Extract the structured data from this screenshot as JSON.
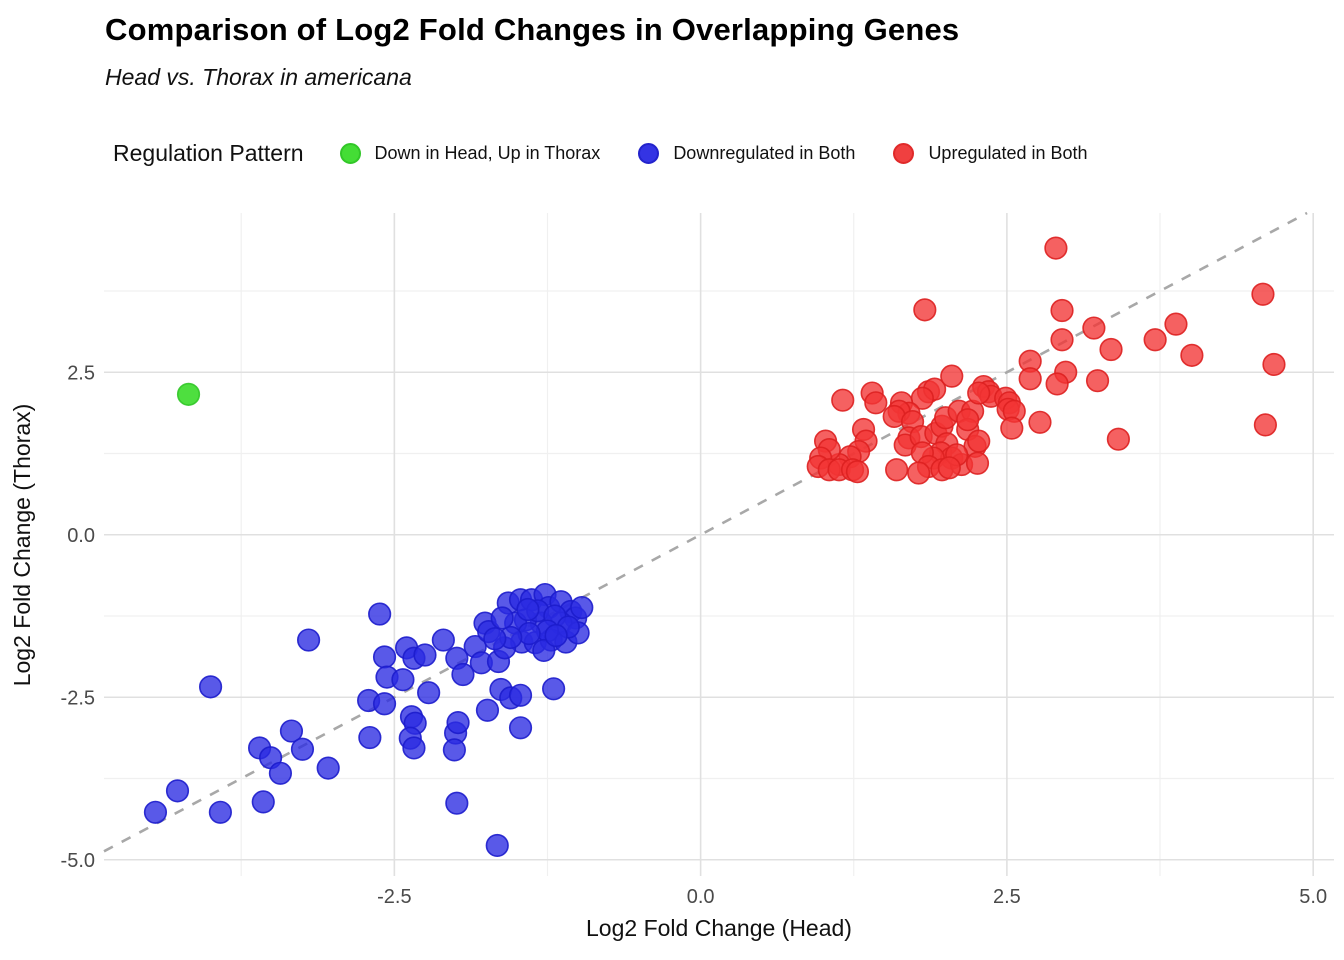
{
  "header": {
    "title": "Comparison of Log2 Fold Changes in Overlapping Genes",
    "subtitle": "Head vs. Thorax in americana"
  },
  "legend": {
    "title": "Regulation Pattern",
    "position": "top",
    "items": [
      {
        "label": "Down in Head, Up in Thorax",
        "color": "#44dd35",
        "edge_color": "#32c728"
      },
      {
        "label": "Downregulated in Both",
        "color": "#3434e4",
        "edge_color": "#2323cc"
      },
      {
        "label": "Upregulated in Both",
        "color": "#f04040",
        "edge_color": "#e02a2a"
      }
    ]
  },
  "axes": {
    "x": {
      "label": "Log2 Fold Change (Head)"
    },
    "y": {
      "label": "Log2 Fold Change (Thorax)"
    }
  },
  "chart_data": {
    "type": "scatter",
    "title": "Comparison of Log2 Fold Changes in Overlapping Genes",
    "subtitle": "Head vs. Thorax in americana",
    "xlabel": "Log2 Fold Change (Head)",
    "ylabel": "Log2 Fold Change (Thorax)",
    "xlim": [
      -4.87,
      5.17
    ],
    "ylim": [
      -5.25,
      4.95
    ],
    "grid": true,
    "x_ticks": {
      "values": [
        -2.5,
        0,
        2.5,
        5
      ],
      "labels": [
        "-2.5",
        "0.0",
        "2.5",
        "5.0"
      ]
    },
    "y_ticks": {
      "values": [
        2.5,
        0,
        -2.5,
        -5
      ],
      "labels": [
        "2.5",
        "0.0",
        "-2.5",
        "-5.0"
      ]
    },
    "x_minor": [
      -3.75,
      -1.25,
      1.25,
      3.75
    ],
    "y_minor": [
      3.75,
      1.25,
      -1.25,
      -3.75
    ],
    "reference_line": {
      "type": "identity y=x",
      "style": "dashed",
      "color": "#a8a8a8",
      "from": [
        -4.87,
        -4.87
      ],
      "to": [
        4.95,
        4.95
      ]
    },
    "series": [
      {
        "name": "Down in Head, Up in Thorax",
        "color": "#44dd35",
        "edge_color": "#32c728",
        "opacity": 0.95,
        "points": [
          [
            -4.18,
            2.16
          ]
        ]
      },
      {
        "name": "Downregulated in Both",
        "color": "#2a2ae2",
        "edge_color": "#1c1ccc",
        "opacity": 0.78,
        "points": [
          [
            -4.45,
            -4.27
          ],
          [
            -4.27,
            -3.94
          ],
          [
            -3.92,
            -4.27
          ],
          [
            -3.57,
            -4.11
          ],
          [
            -4.0,
            -2.34
          ],
          [
            -3.6,
            -3.28
          ],
          [
            -3.51,
            -3.43
          ],
          [
            -3.43,
            -3.67
          ],
          [
            -3.34,
            -3.02
          ],
          [
            -3.25,
            -3.3
          ],
          [
            -3.04,
            -3.59
          ],
          [
            -3.2,
            -1.62
          ],
          [
            -2.71,
            -2.55
          ],
          [
            -2.58,
            -2.6
          ],
          [
            -2.7,
            -3.12
          ],
          [
            -2.62,
            -1.22
          ],
          [
            -2.58,
            -1.88
          ],
          [
            -2.4,
            -1.74
          ],
          [
            -2.56,
            -2.19
          ],
          [
            -2.43,
            -2.23
          ],
          [
            -2.34,
            -1.9
          ],
          [
            -2.25,
            -1.85
          ],
          [
            -2.36,
            -2.8
          ],
          [
            -2.33,
            -2.9
          ],
          [
            -2.22,
            -2.43
          ],
          [
            -2.37,
            -3.13
          ],
          [
            -2.34,
            -3.28
          ],
          [
            -2.0,
            -3.05
          ],
          [
            -2.01,
            -3.31
          ],
          [
            -1.99,
            -4.13
          ],
          [
            -1.66,
            -4.78
          ],
          [
            -2.1,
            -1.62
          ],
          [
            -1.99,
            -1.9
          ],
          [
            -1.94,
            -2.15
          ],
          [
            -1.84,
            -1.72
          ],
          [
            -1.79,
            -1.97
          ],
          [
            -1.65,
            -1.95
          ],
          [
            -1.63,
            -2.38
          ],
          [
            -1.74,
            -2.7
          ],
          [
            -1.98,
            -2.89
          ],
          [
            -1.47,
            -2.97
          ],
          [
            -1.55,
            -2.51
          ],
          [
            -1.47,
            -2.47
          ],
          [
            -1.2,
            -2.37
          ],
          [
            -1.76,
            -1.36
          ],
          [
            -1.73,
            -1.49
          ],
          [
            -1.57,
            -1.05
          ],
          [
            -1.47,
            -1.0
          ],
          [
            -1.38,
            -1.0
          ],
          [
            -1.27,
            -0.92
          ],
          [
            -1.24,
            -1.12
          ],
          [
            -1.14,
            -1.03
          ],
          [
            -1.06,
            -1.18
          ],
          [
            -1.02,
            -1.28
          ],
          [
            -1.14,
            -1.36
          ],
          [
            -1.3,
            -1.36
          ],
          [
            -1.43,
            -1.31
          ],
          [
            -1.51,
            -1.36
          ],
          [
            -1.46,
            -1.65
          ],
          [
            -1.35,
            -1.66
          ],
          [
            -1.22,
            -1.62
          ],
          [
            -1.1,
            -1.65
          ],
          [
            -1.0,
            -1.51
          ],
          [
            -1.6,
            -1.74
          ],
          [
            -0.97,
            -1.12
          ],
          [
            -1.33,
            -1.17
          ],
          [
            -1.41,
            -1.15
          ],
          [
            -1.19,
            -1.25
          ],
          [
            -1.08,
            -1.42
          ],
          [
            -1.25,
            -1.48
          ],
          [
            -1.4,
            -1.52
          ],
          [
            -1.55,
            -1.58
          ],
          [
            -1.28,
            -1.78
          ],
          [
            -1.18,
            -1.55
          ],
          [
            -1.62,
            -1.28
          ],
          [
            -1.68,
            -1.6
          ]
        ]
      },
      {
        "name": "Upregulated in Both",
        "color": "#f23434",
        "edge_color": "#dd2020",
        "opacity": 0.78,
        "points": [
          [
            1.16,
            2.07
          ],
          [
            1.4,
            2.18
          ],
          [
            1.43,
            2.03
          ],
          [
            1.86,
            2.2
          ],
          [
            1.91,
            2.24
          ],
          [
            1.81,
            2.1
          ],
          [
            2.05,
            2.44
          ],
          [
            1.64,
            2.03
          ],
          [
            1.7,
            1.87
          ],
          [
            1.62,
            1.9
          ],
          [
            1.58,
            1.82
          ],
          [
            1.73,
            1.74
          ],
          [
            1.33,
            1.62
          ],
          [
            1.35,
            1.44
          ],
          [
            1.29,
            1.28
          ],
          [
            1.22,
            1.2
          ],
          [
            1.13,
            1.08
          ],
          [
            1.02,
            1.44
          ],
          [
            1.05,
            1.31
          ],
          [
            0.98,
            1.18
          ],
          [
            0.96,
            1.05
          ],
          [
            1.05,
            1.0
          ],
          [
            1.13,
            1.0
          ],
          [
            1.24,
            1.0
          ],
          [
            1.28,
            0.97
          ],
          [
            1.6,
            1.0
          ],
          [
            1.7,
            1.49
          ],
          [
            1.67,
            1.38
          ],
          [
            1.8,
            1.51
          ],
          [
            1.92,
            1.56
          ],
          [
            1.97,
            1.67
          ],
          [
            2.0,
            1.8
          ],
          [
            2.11,
            1.9
          ],
          [
            2.22,
            1.9
          ],
          [
            2.18,
            1.62
          ],
          [
            2.01,
            1.4
          ],
          [
            1.96,
            1.26
          ],
          [
            2.05,
            1.18
          ],
          [
            1.9,
            1.18
          ],
          [
            1.81,
            1.26
          ],
          [
            1.86,
            1.05
          ],
          [
            1.97,
            1.0
          ],
          [
            1.78,
            0.95
          ],
          [
            2.13,
            1.08
          ],
          [
            2.24,
            1.36
          ],
          [
            2.26,
            1.1
          ],
          [
            2.9,
            4.41
          ],
          [
            2.95,
            3.45
          ],
          [
            3.21,
            3.18
          ],
          [
            2.95,
            3.0
          ],
          [
            3.35,
            2.85
          ],
          [
            2.69,
            2.67
          ],
          [
            2.69,
            2.4
          ],
          [
            2.98,
            2.5
          ],
          [
            2.91,
            2.32
          ],
          [
            3.24,
            2.37
          ],
          [
            2.31,
            2.28
          ],
          [
            2.35,
            2.2
          ],
          [
            2.37,
            2.13
          ],
          [
            2.27,
            2.18
          ],
          [
            2.49,
            2.1
          ],
          [
            2.52,
            2.03
          ],
          [
            4.59,
            3.7
          ],
          [
            3.88,
            3.24
          ],
          [
            3.71,
            3.0
          ],
          [
            4.01,
            2.76
          ],
          [
            4.68,
            2.62
          ],
          [
            3.41,
            1.47
          ],
          [
            4.61,
            1.69
          ],
          [
            2.51,
            1.93
          ],
          [
            2.56,
            1.9
          ],
          [
            2.54,
            1.64
          ],
          [
            2.77,
            1.73
          ],
          [
            2.18,
            1.77
          ],
          [
            2.27,
            1.44
          ],
          [
            2.09,
            1.23
          ],
          [
            2.03,
            1.03
          ],
          [
            1.83,
            3.46
          ]
        ]
      }
    ]
  }
}
